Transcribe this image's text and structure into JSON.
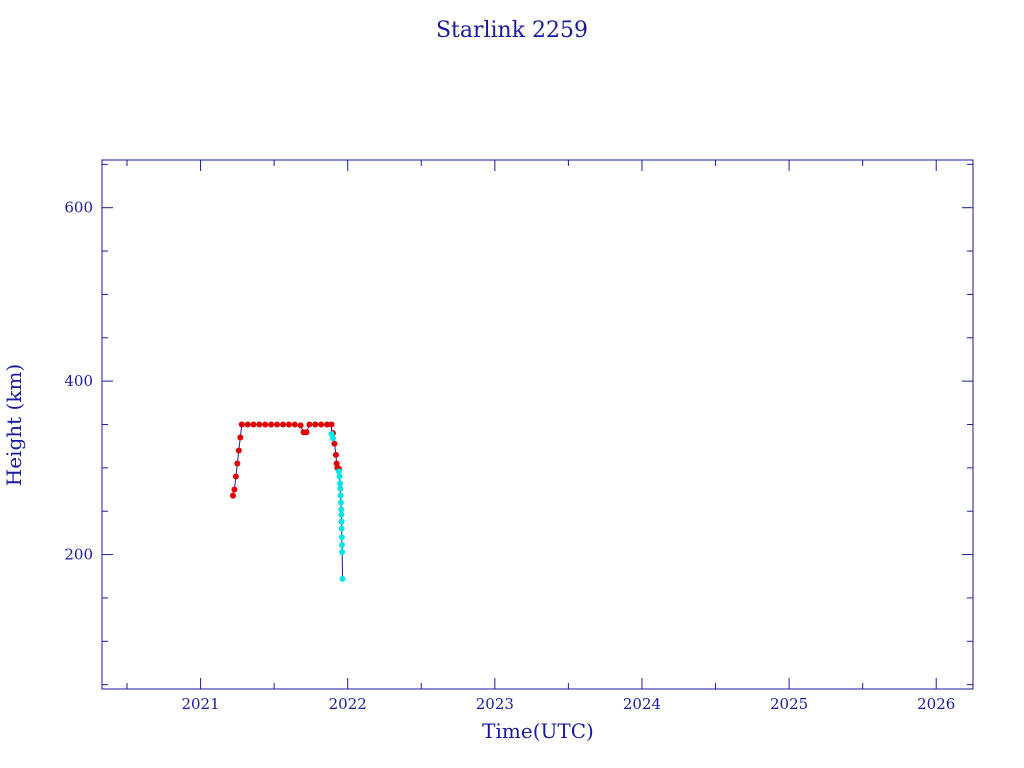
{
  "chart_data": {
    "type": "scatter",
    "title": "Starlink 2259",
    "xlabel": "Time(UTC)",
    "ylabel": "Height (km)",
    "xlim": [
      2020.33,
      2026.25
    ],
    "ylim": [
      45,
      655
    ],
    "x_ticks": [
      "2021",
      "2022",
      "2023",
      "2024",
      "2025",
      "2026"
    ],
    "x_tick_values": [
      2021,
      2022,
      2023,
      2024,
      2025,
      2026
    ],
    "y_ticks": [
      "200",
      "400",
      "600"
    ],
    "y_tick_values": [
      200,
      400,
      600
    ],
    "colors": {
      "axis": "#1a1a9e",
      "red_points": "#e00000",
      "cyan_points": "#00e5e5",
      "connector": "#1a1a9e"
    },
    "series": [
      {
        "color": "red",
        "points": [
          [
            2021.22,
            268
          ],
          [
            2021.23,
            275
          ],
          [
            2021.24,
            290
          ],
          [
            2021.25,
            305
          ],
          [
            2021.26,
            320
          ],
          [
            2021.27,
            335
          ],
          [
            2021.28,
            350
          ],
          [
            2021.32,
            350
          ],
          [
            2021.36,
            350
          ],
          [
            2021.4,
            350
          ],
          [
            2021.44,
            350
          ],
          [
            2021.48,
            350
          ],
          [
            2021.52,
            350
          ],
          [
            2021.56,
            350
          ],
          [
            2021.6,
            350
          ],
          [
            2021.64,
            350
          ],
          [
            2021.68,
            349
          ],
          [
            2021.7,
            341
          ],
          [
            2021.72,
            341
          ],
          [
            2021.74,
            350
          ],
          [
            2021.78,
            350
          ],
          [
            2021.82,
            350
          ],
          [
            2021.86,
            350
          ],
          [
            2021.89,
            350
          ],
          [
            2021.9,
            340
          ],
          [
            2021.91,
            328
          ],
          [
            2021.92,
            315
          ],
          [
            2021.925,
            305
          ],
          [
            2021.93,
            300
          ],
          [
            2021.94,
            299
          ]
        ]
      },
      {
        "color": "cyan",
        "points": [
          [
            2021.89,
            339
          ],
          [
            2021.9,
            334
          ],
          [
            2021.94,
            296
          ],
          [
            2021.945,
            290
          ],
          [
            2021.948,
            282
          ],
          [
            2021.95,
            276
          ],
          [
            2021.952,
            268
          ],
          [
            2021.954,
            260
          ],
          [
            2021.956,
            252
          ],
          [
            2021.957,
            246
          ],
          [
            2021.958,
            238
          ],
          [
            2021.959,
            230
          ],
          [
            2021.96,
            220
          ],
          [
            2021.961,
            211
          ],
          [
            2021.962,
            203
          ],
          [
            2021.965,
            172
          ]
        ]
      }
    ]
  }
}
